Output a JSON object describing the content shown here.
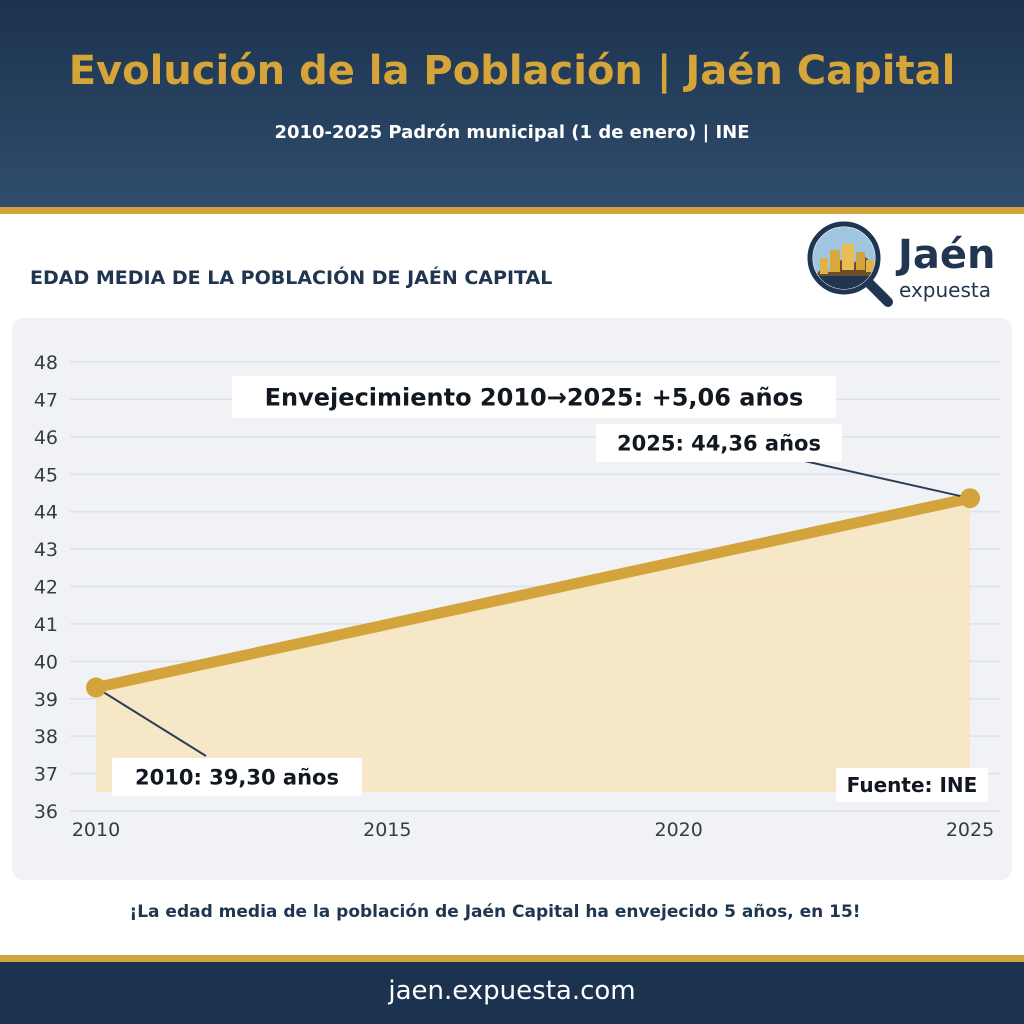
{
  "header": {
    "title": "Evolución de la Población | Jaén Capital",
    "subtitle": "2010-2025  Padrón municipal (1 de enero) | INE"
  },
  "section_title": "EDAD MEDIA DE LA POBLACIÓN DE JAÉN CAPITAL",
  "logo": {
    "name": "Jaén",
    "sub": "expuesta"
  },
  "chart_data": {
    "type": "area",
    "x": [
      2010,
      2025
    ],
    "series": [
      {
        "values": [
          39.3,
          44.36
        ]
      }
    ],
    "xticks": [
      2010,
      2015,
      2020,
      2025
    ],
    "yticks": [
      36,
      37,
      38,
      39,
      40,
      41,
      42,
      43,
      44,
      45,
      46,
      47,
      48
    ],
    "xlim": [
      2010,
      2025
    ],
    "ylim": [
      36,
      48
    ],
    "grid": true,
    "annotations": {
      "summary": "Envejecimiento 2010→2025: +5,06 años",
      "start": "2010: 39,30 años",
      "end": "2025: 44,36 años"
    },
    "source": "Fuente: INE",
    "colors": {
      "line": "#d4a43c",
      "fill": "#f6e6c1",
      "grid": "#dde2ea",
      "text": "#1f3550"
    }
  },
  "tagline": "¡La edad media de la población de Jaén Capital ha envejecido 5 años, en 15!",
  "footer": {
    "url": "jaen.expuesta.com"
  }
}
